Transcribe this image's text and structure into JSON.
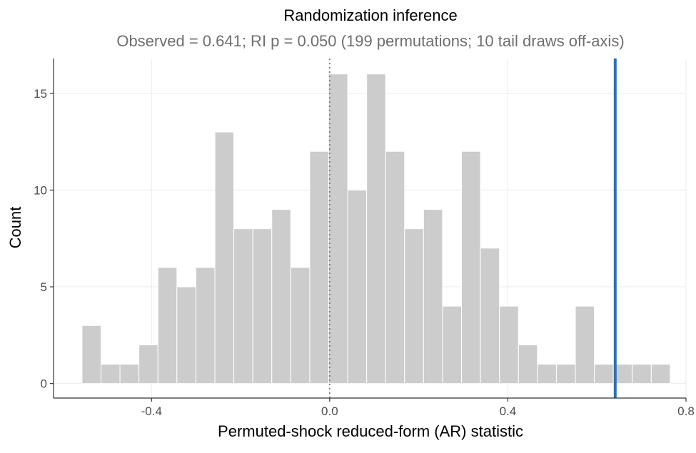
{
  "chart_data": {
    "type": "bar",
    "title": "Randomization inference",
    "subtitle": "Observed = 0.641;  RI p = 0.050  (199 permutations; 10 tail draws off-axis)",
    "xlabel": "Permuted-shock reduced-form (AR) statistic",
    "ylabel": "Count",
    "xlim": [
      -0.62,
      0.8
    ],
    "ylim": [
      -0.75,
      16.8
    ],
    "x_ticks": [
      -0.4,
      0.0,
      0.4,
      0.8
    ],
    "x_tick_labels": [
      "-0.4",
      "0.0",
      "0.4",
      "0.8"
    ],
    "y_ticks": [
      0,
      5,
      10,
      15
    ],
    "y_tick_labels": [
      "0",
      "5",
      "10",
      "15"
    ],
    "bin_width": 0.0426,
    "bins": [
      {
        "x0": -0.556,
        "x1": -0.5134,
        "count": 3
      },
      {
        "x0": -0.5134,
        "x1": -0.4708,
        "count": 1
      },
      {
        "x0": -0.4708,
        "x1": -0.4282,
        "count": 1
      },
      {
        "x0": -0.4282,
        "x1": -0.3856,
        "count": 2
      },
      {
        "x0": -0.3856,
        "x1": -0.343,
        "count": 6
      },
      {
        "x0": -0.343,
        "x1": -0.3004,
        "count": 5
      },
      {
        "x0": -0.3004,
        "x1": -0.2578,
        "count": 6
      },
      {
        "x0": -0.2578,
        "x1": -0.2152,
        "count": 13
      },
      {
        "x0": -0.2152,
        "x1": -0.1726,
        "count": 8
      },
      {
        "x0": -0.1726,
        "x1": -0.13,
        "count": 8
      },
      {
        "x0": -0.13,
        "x1": -0.0874,
        "count": 9
      },
      {
        "x0": -0.0874,
        "x1": -0.0448,
        "count": 6
      },
      {
        "x0": -0.0448,
        "x1": -0.0022,
        "count": 12
      },
      {
        "x0": -0.0022,
        "x1": 0.0404,
        "count": 16
      },
      {
        "x0": 0.0404,
        "x1": 0.083,
        "count": 10
      },
      {
        "x0": 0.083,
        "x1": 0.1256,
        "count": 16
      },
      {
        "x0": 0.1256,
        "x1": 0.1682,
        "count": 12
      },
      {
        "x0": 0.1682,
        "x1": 0.2108,
        "count": 8
      },
      {
        "x0": 0.2108,
        "x1": 0.2534,
        "count": 9
      },
      {
        "x0": 0.2534,
        "x1": 0.296,
        "count": 4
      },
      {
        "x0": 0.296,
        "x1": 0.3386,
        "count": 12
      },
      {
        "x0": 0.3386,
        "x1": 0.3812,
        "count": 7
      },
      {
        "x0": 0.3812,
        "x1": 0.4238,
        "count": 4
      },
      {
        "x0": 0.4238,
        "x1": 0.4664,
        "count": 2
      },
      {
        "x0": 0.4664,
        "x1": 0.509,
        "count": 1
      },
      {
        "x0": 0.509,
        "x1": 0.5516,
        "count": 1
      },
      {
        "x0": 0.5516,
        "x1": 0.5942,
        "count": 4
      },
      {
        "x0": 0.5942,
        "x1": 0.6368,
        "count": 1
      },
      {
        "x0": 0.6368,
        "x1": 0.6794,
        "count": 1
      },
      {
        "x0": 0.6794,
        "x1": 0.722,
        "count": 1
      },
      {
        "x0": 0.722,
        "x1": 0.7646,
        "count": 1
      }
    ],
    "reference_lines": [
      {
        "x": 0.0,
        "style": "dotted",
        "color": "#808080"
      },
      {
        "x": 0.641,
        "style": "solid",
        "color": "#2e6fb7"
      }
    ],
    "bar_color": "#cccccc",
    "grid": true,
    "legend": "none"
  }
}
